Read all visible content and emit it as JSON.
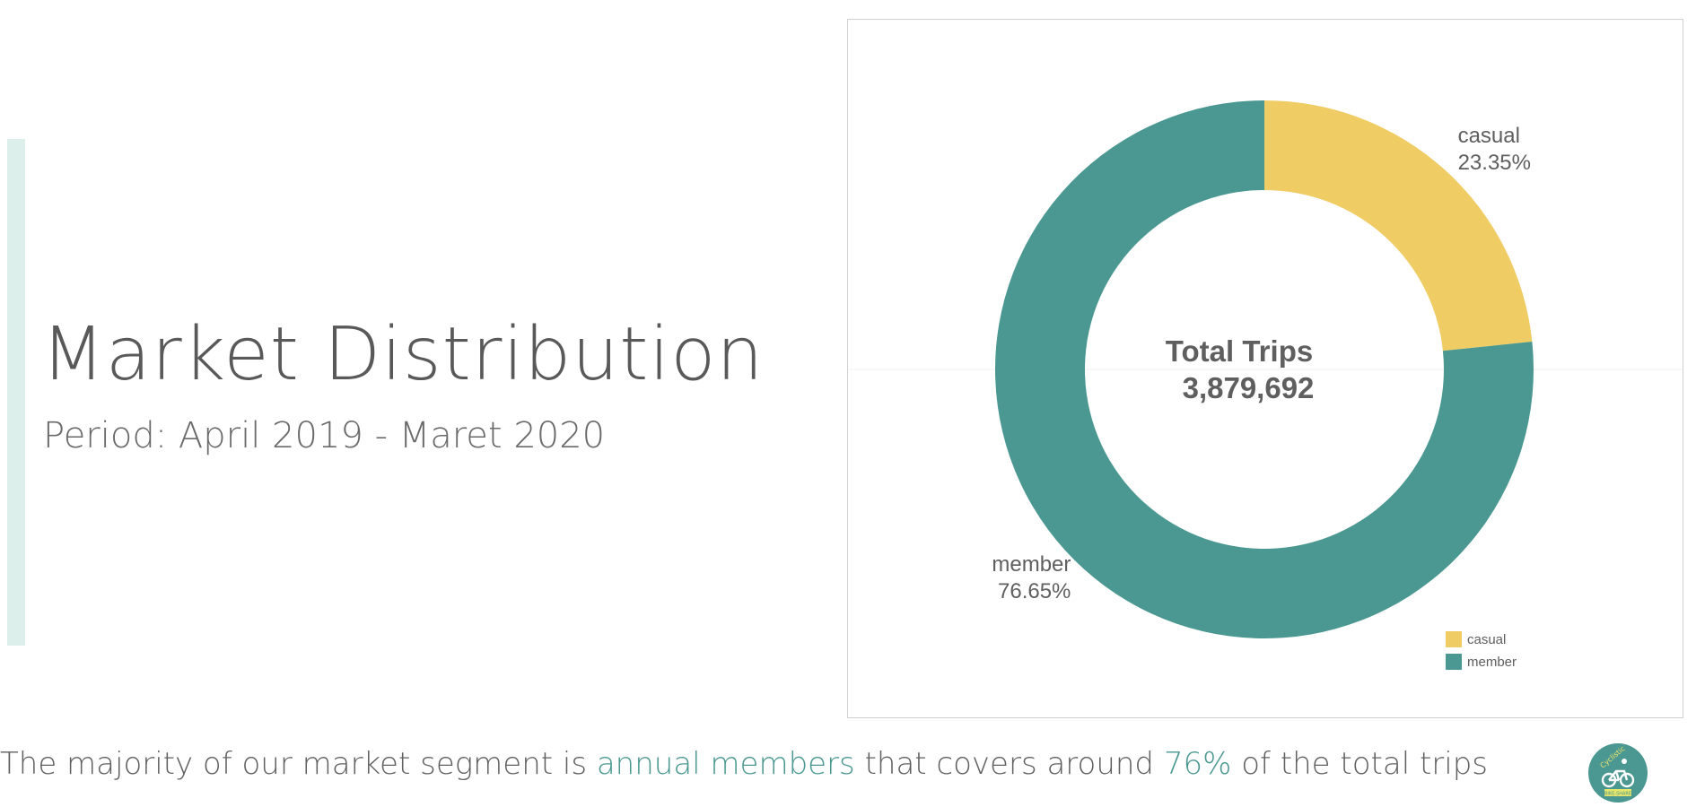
{
  "page": {
    "title": "Market Distribution",
    "subtitle": "Period: April 2019 - Maret 2020"
  },
  "caption": {
    "part1": "The majority of our market segment is ",
    "highlight1": "annual members",
    "part2": " that covers around ",
    "highlight2": "76%",
    "part3": " of the total trips"
  },
  "colors": {
    "casual": "#efcc64",
    "member": "#4a9891",
    "highlight": "#4a9891",
    "accent_bar": "#dcefea"
  },
  "logo": {
    "icon": "bicycle-icon",
    "text_top": "Cyclistic",
    "text_bottom": "BIKE-SHARE"
  },
  "chart_data": {
    "type": "pie",
    "title": "",
    "center_label": "Total Trips",
    "center_value": "3,879,692",
    "legend_placement": "bottom-right",
    "slices": [
      {
        "name": "casual",
        "value": 23.35,
        "label": "23.35%",
        "color": "#efcc64"
      },
      {
        "name": "member",
        "value": 76.65,
        "label": "76.65%",
        "color": "#4a9891"
      }
    ],
    "legend": [
      "casual",
      "member"
    ]
  }
}
